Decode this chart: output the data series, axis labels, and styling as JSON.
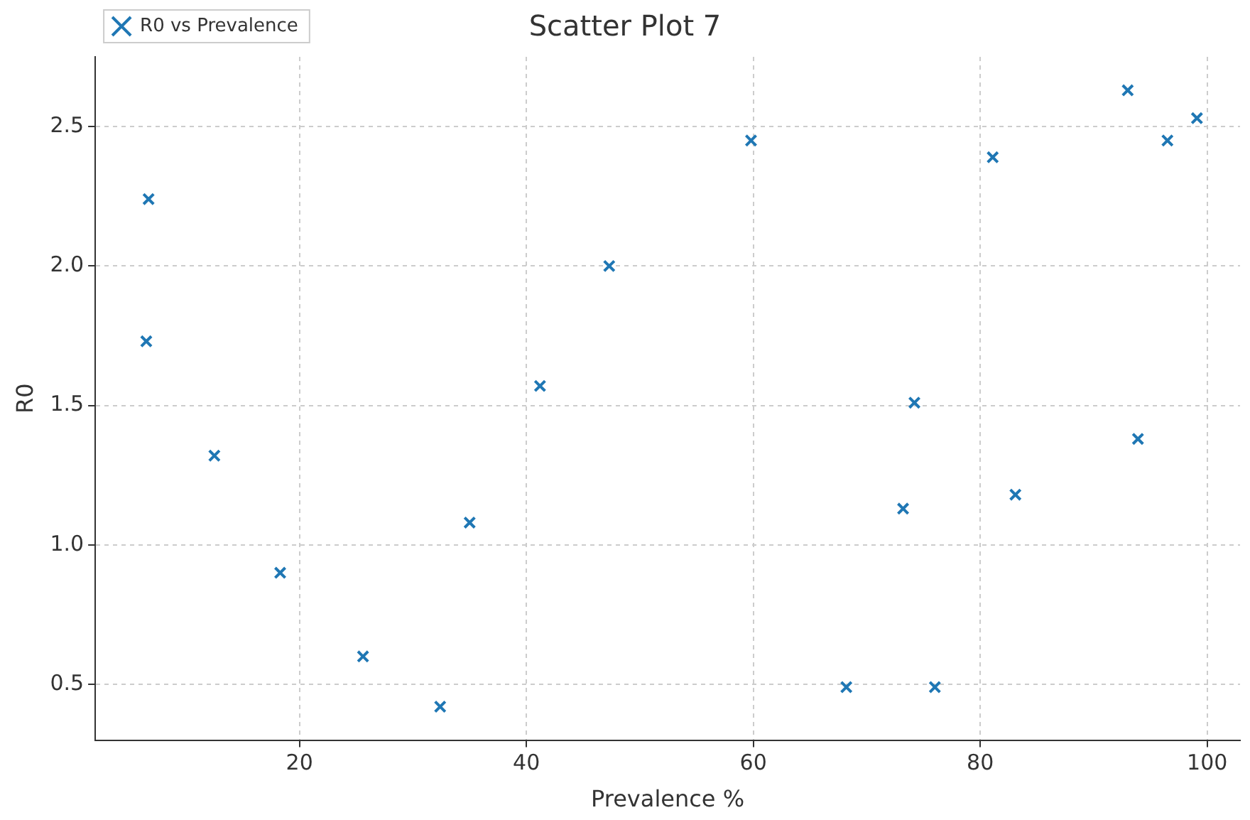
{
  "chart_data": {
    "type": "scatter",
    "title": "Scatter Plot 7",
    "xlabel": "Prevalence %",
    "ylabel": "R0",
    "xlim": [
      2,
      102.9
    ],
    "xticks": [
      20,
      40,
      60,
      80,
      100
    ],
    "ylim": [
      0.3,
      2.75
    ],
    "yticks": [
      {
        "value": 0.5,
        "label": "0.5"
      },
      {
        "value": 1,
        "label": "1.0"
      },
      {
        "value": 1.5,
        "label": "1.5"
      },
      {
        "value": 2,
        "label": "2.0"
      },
      {
        "value": 2.5,
        "label": "2.5"
      }
    ],
    "grid": true,
    "legend": "top left",
    "marker": "cross",
    "series": [
      {
        "name": "R0 vs Prevalence",
        "color": "#1f77b4",
        "x": [
          6.7,
          6.5,
          12.5,
          18.3,
          25.6,
          32.4,
          35.0,
          41.2,
          47.3,
          59.8,
          68.2,
          73.2,
          74.2,
          76.0,
          81.1,
          83.1,
          93.0,
          93.9,
          96.5,
          99.1
        ],
        "values": [
          2.24,
          1.73,
          1.32,
          0.9,
          0.6,
          0.42,
          1.08,
          1.57,
          2.0,
          2.45,
          0.49,
          1.13,
          1.51,
          0.49,
          2.39,
          1.18,
          2.63,
          1.38,
          2.45,
          2.53
        ]
      }
    ]
  }
}
